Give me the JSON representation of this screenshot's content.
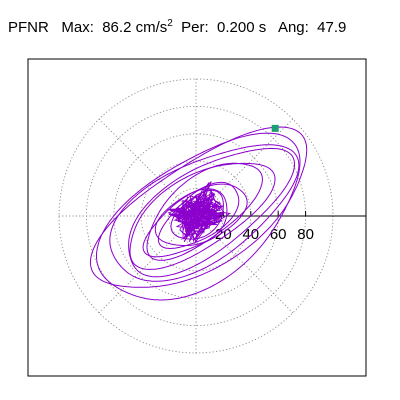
{
  "header": {
    "station": "PFNR",
    "max_label": "Max:",
    "max_value": "86.2",
    "max_unit": "cm/s",
    "max_unit_exponent": "2",
    "per_label": "Per:",
    "per_value": "0.200 s",
    "ang_label": "Ang:",
    "ang_value": "47.9"
  },
  "chart_data": {
    "type": "scatter",
    "subtype": "polar-particle-motion",
    "title": "PFNR  Max: 86.2 cm/s2  Per: 0.200 s  Ang: 47.9",
    "max_amplitude": 86.2,
    "max_angle_deg": 47.9,
    "radial_ticks": [
      "20",
      "40",
      "60",
      "80"
    ],
    "radial_tick_values": [
      20,
      40,
      60,
      80
    ],
    "rings": [
      20,
      40,
      60,
      80,
      100
    ],
    "radial_spokes_deg": [
      0,
      45,
      90,
      135,
      180,
      225,
      270,
      315
    ],
    "grid": true,
    "trace": {
      "color": "#8b00cc",
      "loops": [
        {
          "a": 90,
          "b": 38,
          "theta": 33,
          "dx": 5,
          "dy": 3
        },
        {
          "a": 84,
          "b": 44,
          "theta": 35,
          "dx": 3,
          "dy": -2
        },
        {
          "a": 76,
          "b": 36,
          "theta": 30,
          "dx": 4,
          "dy": 3
        },
        {
          "a": 70,
          "b": 30,
          "theta": 34,
          "dx": 8,
          "dy": 4
        },
        {
          "a": 60,
          "b": 26,
          "theta": 32,
          "dx": 2,
          "dy": 2
        },
        {
          "a": 50,
          "b": 22,
          "theta": 38,
          "dx": 5,
          "dy": 5
        },
        {
          "a": 42,
          "b": 18,
          "theta": 30,
          "dx": 0,
          "dy": -3
        },
        {
          "a": 34,
          "b": 16,
          "theta": 36,
          "dx": 3,
          "dy": 0
        },
        {
          "a": 28,
          "b": 18,
          "theta": 28,
          "dx": -2,
          "dy": -2
        },
        {
          "a": 22,
          "b": 14,
          "theta": 40,
          "dx": 2,
          "dy": 0
        }
      ],
      "marker": {
        "r": 86.2,
        "theta": 47.9,
        "color": "#18a070"
      }
    }
  }
}
